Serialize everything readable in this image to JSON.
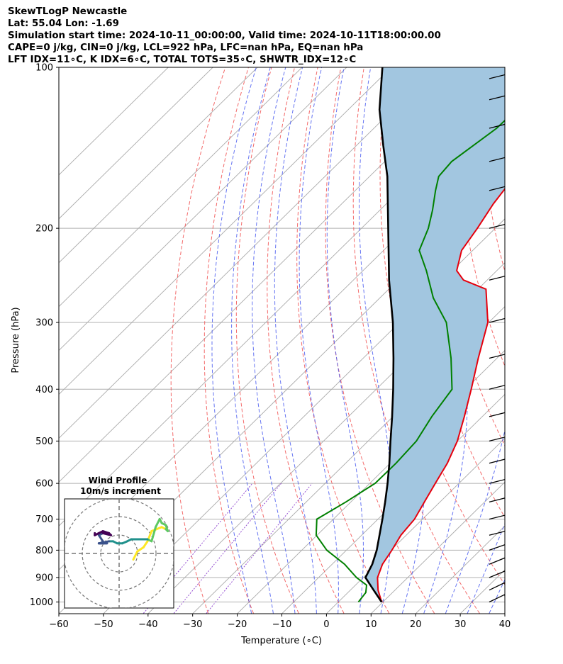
{
  "header": {
    "line1": "SkewTLogP Newcastle",
    "line2": "Lat: 55.04   Lon: -1.69",
    "line3": "Simulation start time: 2024-10-11_00:00:00, Valid time: 2024-10-11T18:00:00.00",
    "line4": "CAPE=0 j/kg, CIN=0 j/kg, LCL=922 hPa, LFC=nan hPa, EQ=nan hPa",
    "line5": "LFT IDX=11∘C, K IDX=6∘C, TOTAL TOTS=35∘C, SHWTR_IDX=12∘C"
  },
  "chart_data": {
    "type": "line",
    "title": "SkewTLogP Newcastle",
    "xlabel": "Temperature (∘C)",
    "ylabel": "Pressure (hPa)",
    "xlim": [
      -60,
      40
    ],
    "ylim": [
      1050,
      100
    ],
    "y_scale": "log",
    "grid": true,
    "x_ticks": [
      -60,
      -50,
      -40,
      -30,
      -20,
      -10,
      0,
      10,
      20,
      30,
      40
    ],
    "x_tick_labels": [
      "−60",
      "−50",
      "−40",
      "−30",
      "−20",
      "−10",
      "0",
      "10",
      "20",
      "30",
      "40"
    ],
    "y_ticks": [
      1000,
      900,
      800,
      700,
      600,
      500,
      400,
      300,
      200,
      100
    ],
    "y_tick_labels": [
      "1000",
      "900",
      "800",
      "700",
      "600",
      "500",
      "400",
      "300",
      "200",
      "100"
    ],
    "colors": {
      "temperature": "#e6000d",
      "dewpoint": "#008000",
      "parcel": "#000000",
      "cape_fill": "#a2c6e0",
      "dry_adiabat": "#f25a5a",
      "moist_adiabat": "#4a5cf0",
      "mixing_ratio": "#8a3ccc",
      "isotherm": "#aaaaaa"
    },
    "series": [
      {
        "role": "temperature",
        "points": [
          [
            9.7,
            1000
          ],
          [
            6.2,
            950
          ],
          [
            3.2,
            900
          ],
          [
            1.3,
            850
          ],
          [
            0.2,
            800
          ],
          [
            -1.2,
            750
          ],
          [
            -1.8,
            700
          ],
          [
            -3.5,
            650
          ],
          [
            -5.3,
            600
          ],
          [
            -7.2,
            550
          ],
          [
            -10.0,
            500
          ],
          [
            -14.0,
            450
          ],
          [
            -18.7,
            400
          ],
          [
            -24.2,
            350
          ],
          [
            -30.2,
            300
          ],
          [
            -38.2,
            260
          ],
          [
            -45.3,
            250
          ],
          [
            -49.0,
            240
          ],
          [
            -52.5,
            220
          ],
          [
            -54.0,
            200
          ],
          [
            -56.0,
            180
          ],
          [
            -57.5,
            160
          ],
          [
            -57.5,
            140
          ],
          [
            -58.0,
            120
          ],
          [
            -58.5,
            110
          ],
          [
            -59.0,
            100
          ]
        ]
      },
      {
        "role": "dewpoint",
        "points": [
          [
            4.5,
            1000
          ],
          [
            4.0,
            960
          ],
          [
            2.5,
            930
          ],
          [
            -1.5,
            900
          ],
          [
            -7.2,
            850
          ],
          [
            -14.4,
            800
          ],
          [
            -20.2,
            750
          ],
          [
            -23.7,
            700
          ],
          [
            -21.1,
            650
          ],
          [
            -18.8,
            600
          ],
          [
            -18.7,
            550
          ],
          [
            -19.2,
            500
          ],
          [
            -21.3,
            450
          ],
          [
            -23.0,
            400
          ],
          [
            -30.3,
            350
          ],
          [
            -39.5,
            300
          ],
          [
            -48.0,
            270
          ],
          [
            -55.8,
            240
          ],
          [
            -62.0,
            220
          ],
          [
            -65.0,
            200
          ],
          [
            -68.2,
            185
          ],
          [
            -72.0,
            170
          ],
          [
            -74.5,
            160
          ],
          [
            -75.0,
            150
          ],
          [
            -72.5,
            130
          ],
          [
            -72.0,
            100
          ]
        ]
      },
      {
        "role": "parcel",
        "points": [
          [
            9.7,
            1000
          ],
          [
            5.2,
            950
          ],
          [
            0.5,
            900
          ],
          [
            -1.0,
            850
          ],
          [
            -3.2,
            800
          ],
          [
            -6.0,
            750
          ],
          [
            -9.0,
            700
          ],
          [
            -12.3,
            650
          ],
          [
            -16.0,
            600
          ],
          [
            -20.2,
            550
          ],
          [
            -25.0,
            500
          ],
          [
            -30.2,
            450
          ],
          [
            -36.2,
            400
          ],
          [
            -43.2,
            350
          ],
          [
            -51.5,
            300
          ],
          [
            -62.0,
            250
          ],
          [
            -74.0,
            200
          ],
          [
            -86.0,
            160
          ],
          [
            -94.0,
            140
          ],
          [
            -103.0,
            120
          ],
          [
            -112.0,
            100
          ]
        ]
      }
    ],
    "wind_barbs": [
      {
        "p": 1000,
        "u": -25,
        "v": -12
      },
      {
        "p": 950,
        "u": -25,
        "v": -12
      },
      {
        "p": 900,
        "u": -22,
        "v": -9
      },
      {
        "p": 850,
        "u": -22,
        "v": -9
      },
      {
        "p": 800,
        "u": -20,
        "v": -7
      },
      {
        "p": 750,
        "u": -20,
        "v": -5
      },
      {
        "p": 700,
        "u": -20,
        "v": -5
      },
      {
        "p": 650,
        "u": -20,
        "v": -5
      },
      {
        "p": 600,
        "u": -20,
        "v": -5
      },
      {
        "p": 550,
        "u": -20,
        "v": -5
      },
      {
        "p": 500,
        "u": -20,
        "v": -5
      },
      {
        "p": 450,
        "u": -20,
        "v": -5
      },
      {
        "p": 400,
        "u": -20,
        "v": -5
      },
      {
        "p": 350,
        "u": -20,
        "v": -5
      },
      {
        "p": 300,
        "u": -20,
        "v": -5
      },
      {
        "p": 250,
        "u": -20,
        "v": -5
      },
      {
        "p": 200,
        "u": -20,
        "v": -5
      },
      {
        "p": 170,
        "u": -20,
        "v": -5
      },
      {
        "p": 150,
        "u": -20,
        "v": -5
      },
      {
        "p": 130,
        "u": -20,
        "v": -5
      },
      {
        "p": 115,
        "u": -20,
        "v": -5
      },
      {
        "p": 105,
        "u": -20,
        "v": -5
      }
    ],
    "hodograph": {
      "title_line1": "Wind Profile",
      "title_line2": "10m/s increment",
      "rings": [
        10,
        20,
        30
      ],
      "points": [
        [
          3.5,
          -1.5
        ],
        [
          4.5,
          0.5
        ],
        [
          6.0,
          1.5
        ],
        [
          6.0,
          1.5
        ],
        [
          7.0,
          3.0
        ],
        [
          8.0,
          5.5
        ],
        [
          10.5,
          6.5
        ],
        [
          11.5,
          6.0
        ],
        [
          12.0,
          5.5
        ],
        [
          11.5,
          7.0
        ],
        [
          10.5,
          7.5
        ],
        [
          10.0,
          8.5
        ],
        [
          9.0,
          6.5
        ],
        [
          8.0,
          3.0
        ],
        [
          7.0,
          3.5
        ],
        [
          3.5,
          3.5
        ],
        [
          3.0,
          3.5
        ],
        [
          2.0,
          3.0
        ],
        [
          0.8,
          2.5
        ],
        [
          -0.5,
          2.5
        ],
        [
          -1.5,
          3.0
        ],
        [
          -2.5,
          3.0
        ],
        [
          -5.0,
          2.5
        ],
        [
          -3.0,
          2.5
        ],
        [
          -5.0,
          2.5
        ],
        [
          -4.5,
          2.5
        ],
        [
          -4.0,
          3.0
        ],
        [
          -5.0,
          4.5
        ],
        [
          -4.0,
          5.0
        ],
        [
          -2.0,
          4.5
        ],
        [
          -2.5,
          5.0
        ],
        [
          -4.0,
          5.5
        ],
        [
          -5.0,
          5.0
        ],
        [
          -6.0,
          4.5
        ],
        [
          -6.0,
          5.0
        ]
      ]
    }
  }
}
